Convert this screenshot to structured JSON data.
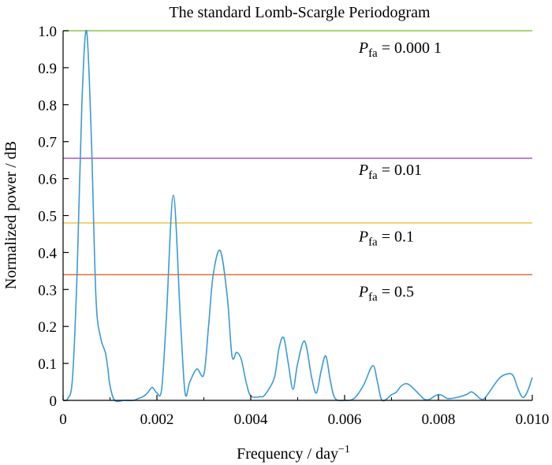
{
  "chart_data": {
    "type": "line",
    "title": "The standard Lomb-Scargle Periodogram",
    "xlabel": "Frequency / day",
    "xlabel_sup": "−1",
    "ylabel": "Normalized power / dB",
    "xlim": [
      0,
      0.01
    ],
    "ylim": [
      0,
      1.0
    ],
    "x_ticks": [
      0,
      0.002,
      0.004,
      0.006,
      0.008,
      0.01
    ],
    "x_tick_labels": [
      "0",
      "0.002",
      "0.004",
      "0.006",
      "0.008",
      "0.010"
    ],
    "y_ticks": [
      0,
      0.1,
      0.2,
      0.3,
      0.4,
      0.5,
      0.6,
      0.7,
      0.8,
      0.9,
      1.0
    ],
    "y_tick_labels": [
      "0",
      "0.1",
      "0.2",
      "0.3",
      "0.4",
      "0.5",
      "0.6",
      "0.7",
      "0.8",
      "0.9",
      "1.0"
    ],
    "grid": false,
    "series": [
      {
        "name": "Periodogram",
        "color": "#3a9ad9",
        "points": [
          [
            0.0,
            0.0
          ],
          [
            0.0001,
            0.005
          ],
          [
            0.0002,
            0.06
          ],
          [
            0.0003,
            0.35
          ],
          [
            0.0004,
            0.8
          ],
          [
            0.0005,
            1.0
          ],
          [
            0.0006,
            0.72
          ],
          [
            0.0007,
            0.28
          ],
          [
            0.0008,
            0.17
          ],
          [
            0.0009,
            0.13
          ],
          [
            0.00095,
            0.09
          ],
          [
            0.001,
            0.04
          ],
          [
            0.0011,
            0.0
          ],
          [
            0.0013,
            0.0
          ],
          [
            0.0015,
            0.0
          ],
          [
            0.0016,
            0.005
          ],
          [
            0.0017,
            0.01
          ],
          [
            0.0018,
            0.02
          ],
          [
            0.0019,
            0.035
          ],
          [
            0.002,
            0.02
          ],
          [
            0.0021,
            0.03
          ],
          [
            0.0022,
            0.22
          ],
          [
            0.00235,
            0.555
          ],
          [
            0.0025,
            0.22
          ],
          [
            0.0026,
            0.02
          ],
          [
            0.0027,
            0.05
          ],
          [
            0.00285,
            0.085
          ],
          [
            0.003,
            0.07
          ],
          [
            0.0031,
            0.2
          ],
          [
            0.0032,
            0.34
          ],
          [
            0.00335,
            0.405
          ],
          [
            0.0035,
            0.28
          ],
          [
            0.0036,
            0.12
          ],
          [
            0.0037,
            0.13
          ],
          [
            0.0038,
            0.11
          ],
          [
            0.0039,
            0.05
          ],
          [
            0.004,
            0.012
          ],
          [
            0.0042,
            0.01
          ],
          [
            0.0043,
            0.015
          ],
          [
            0.0045,
            0.06
          ],
          [
            0.0046,
            0.14
          ],
          [
            0.0047,
            0.17
          ],
          [
            0.0048,
            0.1
          ],
          [
            0.0049,
            0.03
          ],
          [
            0.005,
            0.1
          ],
          [
            0.00515,
            0.16
          ],
          [
            0.0053,
            0.06
          ],
          [
            0.0054,
            0.02
          ],
          [
            0.0055,
            0.08
          ],
          [
            0.0056,
            0.12
          ],
          [
            0.0057,
            0.05
          ],
          [
            0.0058,
            0.005
          ],
          [
            0.006,
            0.0
          ],
          [
            0.0062,
            0.005
          ],
          [
            0.0064,
            0.04
          ],
          [
            0.0066,
            0.094
          ],
          [
            0.0067,
            0.05
          ],
          [
            0.0068,
            0.0
          ],
          [
            0.007,
            0.015
          ],
          [
            0.0071,
            0.022
          ],
          [
            0.0072,
            0.038
          ],
          [
            0.0073,
            0.045
          ],
          [
            0.0074,
            0.04
          ],
          [
            0.0076,
            0.015
          ],
          [
            0.0077,
            0.003
          ],
          [
            0.0078,
            0.002
          ],
          [
            0.0079,
            0.01
          ],
          [
            0.008,
            0.016
          ],
          [
            0.0081,
            0.012
          ],
          [
            0.0082,
            0.005
          ],
          [
            0.0084,
            0.008
          ],
          [
            0.0086,
            0.016
          ],
          [
            0.0087,
            0.023
          ],
          [
            0.0088,
            0.015
          ],
          [
            0.0089,
            0.004
          ],
          [
            0.009,
            0.008
          ],
          [
            0.0093,
            0.06
          ],
          [
            0.0095,
            0.072
          ],
          [
            0.0096,
            0.065
          ],
          [
            0.0097,
            0.03
          ],
          [
            0.0098,
            0.008
          ],
          [
            0.0099,
            0.025
          ],
          [
            0.01,
            0.062
          ]
        ]
      }
    ],
    "thresholds": [
      {
        "p_fa": "0.000 1",
        "value": 1.0,
        "color": "#8bc34a",
        "label_x": 0.0063,
        "label_y": 0.94
      },
      {
        "p_fa": "0.01",
        "value": 0.655,
        "color": "#a35db3",
        "label_x": 0.0063,
        "label_y": 0.61
      },
      {
        "p_fa": "0.1",
        "value": 0.48,
        "color": "#f5c242",
        "label_x": 0.0063,
        "label_y": 0.43
      },
      {
        "p_fa": "0.5",
        "value": 0.34,
        "color": "#ee6a3b",
        "label_x": 0.0063,
        "label_y": 0.28
      }
    ],
    "annotation_prefix": "P",
    "annotation_subscript": "fa",
    "annotation_equals": " = "
  }
}
